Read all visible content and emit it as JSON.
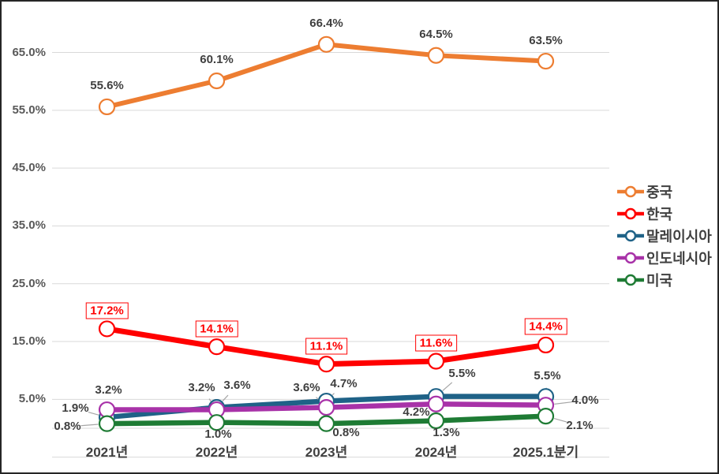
{
  "theme": {
    "background": "#FFFFFF",
    "border_color": "#262626",
    "grid_color": "#D9D9D9",
    "leader_color": "#A6A6A6",
    "tick_color": "#595959",
    "data_label_color": "#3F3F3F",
    "axis_label_color": "#404040"
  },
  "chart_data": {
    "type": "line",
    "title": "",
    "xlabel": "",
    "ylabel": "",
    "grid": true,
    "legend_position": "right",
    "ylim": [
      -5,
      70
    ],
    "categories": [
      "2021년",
      "2022년",
      "2023년",
      "2024년",
      "2025.1분기"
    ],
    "y_ticks": [
      "65.0%",
      "55.0%",
      "45.0%",
      "35.0%",
      "25.0%",
      "15.0%",
      "5.0%"
    ],
    "y_tick_values": [
      65,
      55,
      45,
      35,
      25,
      15,
      5
    ],
    "series": [
      {
        "name": "중국",
        "color": "#ED7D31",
        "values": [
          55.6,
          60.1,
          66.4,
          64.5,
          63.5
        ],
        "labels": [
          "55.6%",
          "60.1%",
          "66.4%",
          "64.5%",
          "63.5%"
        ],
        "label_style": "plain"
      },
      {
        "name": "한국",
        "color": "#FF0000",
        "values": [
          17.2,
          14.1,
          11.1,
          11.6,
          14.4
        ],
        "labels": [
          "17.2%",
          "14.1%",
          "11.1%",
          "11.6%",
          "14.4%"
        ],
        "label_style": "boxed"
      },
      {
        "name": "말레이시아",
        "color": "#1F6287",
        "values": [
          1.9,
          3.6,
          4.7,
          5.5,
          5.5
        ],
        "labels": [
          "1.9%",
          "3.6%",
          "4.7%",
          "5.5%",
          "5.5%"
        ],
        "label_style": "plain"
      },
      {
        "name": "인도네시아",
        "color": "#A832A8",
        "values": [
          3.2,
          3.2,
          3.6,
          4.2,
          4.0
        ],
        "labels": [
          "3.2%",
          "3.2%",
          "3.6%",
          "4.2%",
          "4.0%"
        ],
        "label_style": "plain"
      },
      {
        "name": "미국",
        "color": "#1E7B34",
        "values": [
          0.8,
          1.0,
          0.8,
          1.3,
          2.1
        ],
        "labels": [
          "0.8%",
          "1.0%",
          "0.8%",
          "1.3%",
          "2.1%"
        ],
        "label_style": "plain"
      }
    ]
  }
}
